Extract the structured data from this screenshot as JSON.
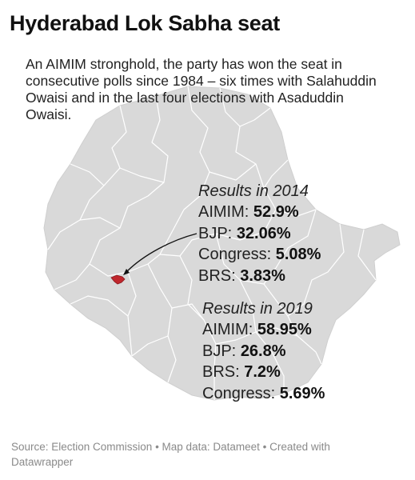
{
  "title": "Hyderabad Lok Sabha seat",
  "intro": "An AIMIM stronghold, the party has won the seat in consecutive polls since 1984 – six times with Salahuddin Owaisi and in the last four elections with Asaduddin Owaisi.",
  "results_2014": {
    "heading": "Results in 2014",
    "rows": [
      {
        "party": "AIMIM:",
        "value": "52.9%"
      },
      {
        "party": "BJP:",
        "value": "32.06%"
      },
      {
        "party": "Congress:",
        "value": "5.08%"
      },
      {
        "party": "BRS:",
        "value": "3.83%"
      }
    ]
  },
  "results_2019": {
    "heading": "Results in 2019",
    "rows": [
      {
        "party": "AIMIM:",
        "value": "58.95%"
      },
      {
        "party": "BJP:",
        "value": "26.8%"
      },
      {
        "party": "BRS:",
        "value": "7.2%"
      },
      {
        "party": "Congress:",
        "value": "5.69%"
      }
    ]
  },
  "source": "Source: Election Commission • Map data: Datameet • Created with Datawrapper",
  "colors": {
    "land": "#d9d9d9",
    "border": "#ffffff",
    "highlight": "#c0272d",
    "text": "#222222",
    "source": "#8a8a8a"
  }
}
